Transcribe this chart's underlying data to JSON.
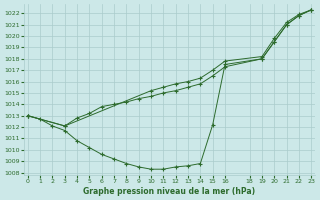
{
  "title": "Graphe pression niveau de la mer (hPa)",
  "bg_color": "#cce8e8",
  "grid_color": "#aacccc",
  "line_color": "#2d6b2d",
  "xlim": [
    -0.3,
    23.3
  ],
  "ylim": [
    1007.8,
    1022.8
  ],
  "xticks": [
    0,
    1,
    2,
    3,
    4,
    5,
    6,
    7,
    8,
    9,
    10,
    11,
    12,
    13,
    14,
    15,
    16,
    18,
    19,
    20,
    21,
    22,
    23
  ],
  "yticks": [
    1008,
    1009,
    1010,
    1011,
    1012,
    1013,
    1014,
    1015,
    1016,
    1017,
    1018,
    1019,
    1020,
    1021,
    1022
  ],
  "series": [
    {
      "x": [
        0,
        1,
        2,
        3,
        4,
        5,
        6,
        7,
        8,
        9,
        10,
        11,
        12,
        13,
        14,
        15,
        16,
        19,
        20,
        21,
        22,
        23
      ],
      "y": [
        1013.0,
        1012.7,
        1012.1,
        1011.7,
        1010.8,
        1010.2,
        1009.6,
        1009.2,
        1008.8,
        1008.5,
        1008.3,
        1008.3,
        1008.5,
        1008.6,
        1008.8,
        1012.2,
        1017.5,
        1018.0,
        1019.5,
        1021.0,
        1021.8,
        1022.3
      ]
    },
    {
      "x": [
        0,
        3,
        4,
        5,
        6,
        7,
        8,
        9,
        10,
        11,
        12,
        13,
        14,
        15,
        16,
        19,
        20,
        21,
        22,
        23
      ],
      "y": [
        1013.0,
        1012.1,
        1012.8,
        1013.2,
        1013.8,
        1014.0,
        1014.2,
        1014.5,
        1014.7,
        1015.0,
        1015.2,
        1015.5,
        1015.8,
        1016.5,
        1017.3,
        1018.0,
        1019.5,
        1021.0,
        1021.8,
        1022.3
      ]
    },
    {
      "x": [
        0,
        3,
        10,
        11,
        12,
        13,
        14,
        15,
        16,
        19,
        20,
        21,
        22,
        23
      ],
      "y": [
        1013.0,
        1012.1,
        1015.2,
        1015.5,
        1015.8,
        1016.0,
        1016.3,
        1017.0,
        1017.8,
        1018.2,
        1019.8,
        1021.2,
        1021.9,
        1022.3
      ]
    }
  ]
}
